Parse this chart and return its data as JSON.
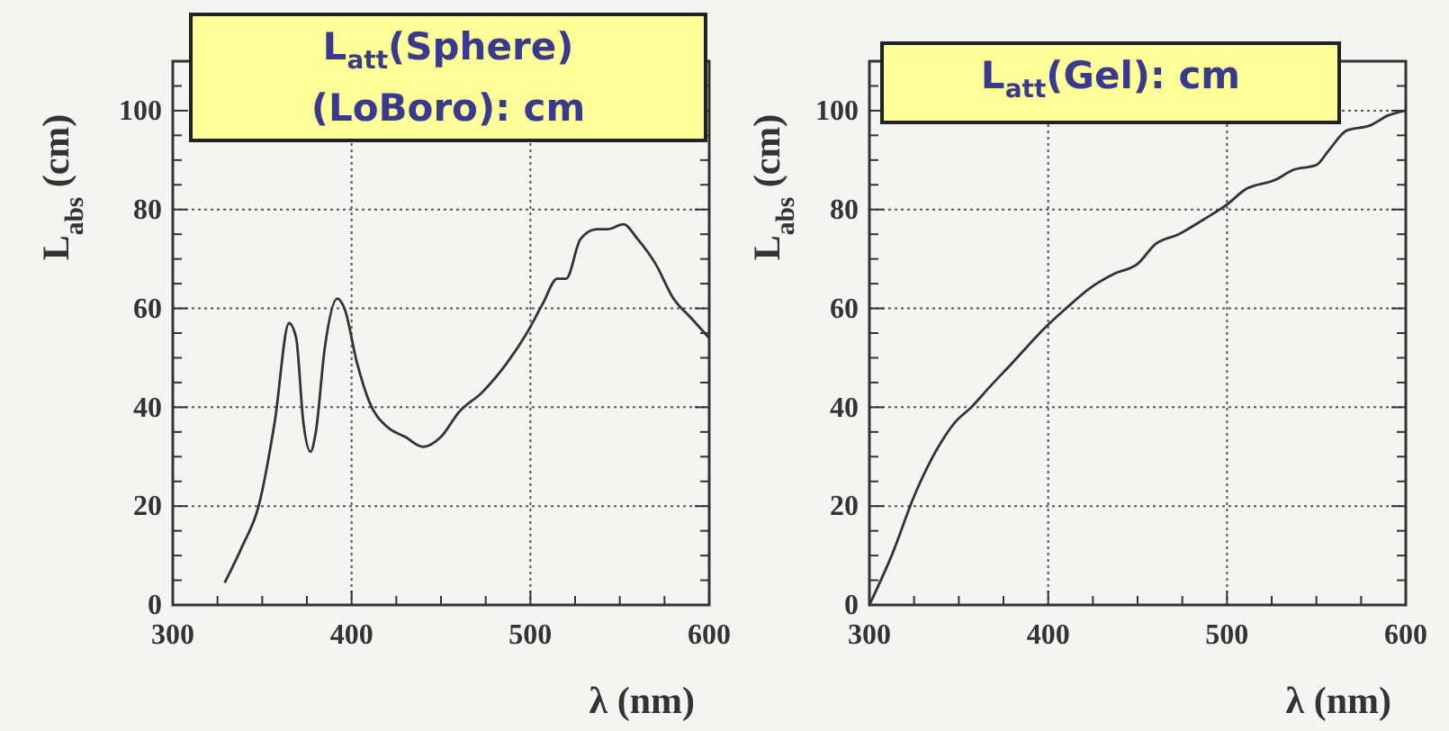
{
  "chart_data": [
    {
      "type": "line",
      "xlabel": "λ (nm)",
      "ylabel": "L$_{abs}$ (cm)",
      "annotations": [
        "L$_{att}$(Sphere) (LoBoro): cm"
      ],
      "series": [
        {
          "color": "#333333",
          "x": [
            329,
            339,
            348,
            357,
            365,
            369,
            373,
            377,
            380,
            385,
            392,
            396,
            403,
            410,
            420,
            430,
            440,
            450,
            460,
            473,
            487,
            498,
            507,
            515,
            520,
            528,
            537,
            543,
            552,
            560,
            570,
            580,
            590,
            600
          ],
          "values": [
            4.5,
            12,
            20,
            37,
            57,
            54,
            37,
            31,
            35,
            52,
            62,
            60,
            49,
            41,
            36,
            34,
            32,
            34,
            39,
            43,
            49,
            55,
            61,
            66,
            66,
            74,
            76,
            76,
            77,
            74,
            69,
            62,
            58,
            54
          ]
        }
      ],
      "xlim": [
        300,
        600
      ],
      "ylim": [
        0,
        110
      ],
      "xticks": [
        300,
        {
          "value": 325,
          "label": null
        },
        400,
        {
          "value": 350,
          "label": null
        },
        {
          "value": 375,
          "label": null
        },
        {
          "value": 425,
          "label": null
        },
        {
          "value": 450,
          "label": null
        },
        {
          "value": 475,
          "label": null
        },
        500,
        {
          "value": 525,
          "label": null
        },
        {
          "value": 550,
          "label": null
        },
        {
          "value": 575,
          "label": null
        },
        600
      ],
      "yticks": [
        0,
        20,
        40,
        60,
        80,
        100,
        {
          "value": 5,
          "label": null
        },
        {
          "value": 10,
          "label": null
        },
        {
          "value": 15,
          "label": null
        },
        {
          "value": 25,
          "label": null
        },
        {
          "value": 30,
          "label": null
        },
        {
          "value": 35,
          "label": null
        },
        {
          "value": 45,
          "label": null
        },
        {
          "value": 50,
          "label": null
        },
        {
          "value": 55,
          "label": null
        },
        {
          "value": 65,
          "label": null
        },
        {
          "value": 70,
          "label": null
        },
        {
          "value": 75,
          "label": null
        },
        {
          "value": 85,
          "label": null
        },
        {
          "value": 90,
          "label": null
        },
        {
          "value": 95,
          "label": null
        },
        {
          "value": 105,
          "label": null
        }
      ],
      "grid": true,
      "line_style": "solid",
      "marker": "none"
    },
    {
      "type": "line",
      "xlabel": "λ (nm)",
      "ylabel": "L$_{abs}$ (cm)",
      "annotations": [
        "L$_{att}$(Gel): cm"
      ],
      "series": [
        {
          "color": "#333333",
          "x": [
            300,
            313,
            325,
            337,
            348,
            357,
            367,
            380,
            398,
            410,
            423,
            437,
            450,
            460,
            473,
            487,
            500,
            510,
            527,
            537,
            550,
            557,
            567,
            580,
            590,
            600
          ],
          "values": [
            0,
            10.5,
            22,
            31,
            37,
            40,
            44,
            49,
            56,
            60,
            64,
            67,
            69,
            73,
            75,
            78,
            81,
            84,
            86,
            88,
            89,
            92,
            96,
            97,
            99,
            100
          ]
        }
      ],
      "xlim": [
        300,
        600
      ],
      "ylim": [
        0,
        110
      ],
      "xticks": [
        300,
        {
          "value": 325,
          "label": null
        },
        {
          "value": 350,
          "label": null
        },
        {
          "value": 375,
          "label": null
        },
        400,
        {
          "value": 425,
          "label": null
        },
        {
          "value": 450,
          "label": null
        },
        {
          "value": 475,
          "label": null
        },
        500,
        {
          "value": 525,
          "label": null
        },
        {
          "value": 550,
          "label": null
        },
        {
          "value": 575,
          "label": null
        },
        600
      ],
      "yticks": [
        0,
        20,
        40,
        60,
        80,
        100,
        {
          "value": 5,
          "label": null
        },
        {
          "value": 10,
          "label": null
        },
        {
          "value": 15,
          "label": null
        },
        {
          "value": 25,
          "label": null
        },
        {
          "value": 30,
          "label": null
        },
        {
          "value": 35,
          "label": null
        },
        {
          "value": 45,
          "label": null
        },
        {
          "value": 50,
          "label": null
        },
        {
          "value": 55,
          "label": null
        },
        {
          "value": 65,
          "label": null
        },
        {
          "value": 70,
          "label": null
        },
        {
          "value": 75,
          "label": null
        },
        {
          "value": 85,
          "label": null
        },
        {
          "value": 90,
          "label": null
        },
        {
          "value": 95,
          "label": null
        },
        {
          "value": 105,
          "label": null
        }
      ],
      "grid": true,
      "line_style": "solid",
      "marker": "none"
    }
  ]
}
